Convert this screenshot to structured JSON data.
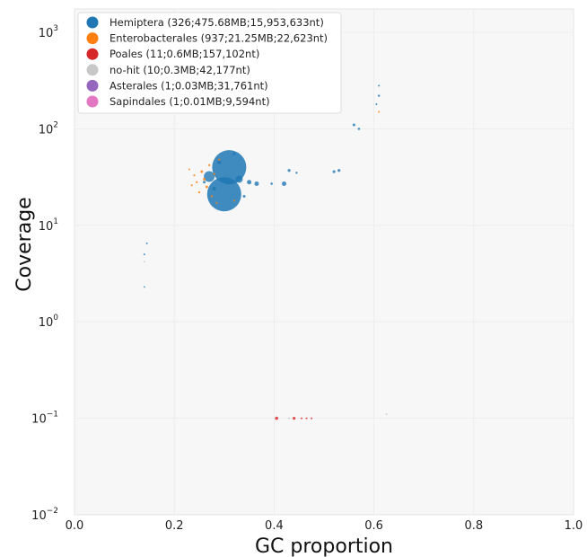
{
  "chart_data": {
    "type": "scatter",
    "xlabel": "GC proportion",
    "ylabel": "Coverage",
    "xlim": [
      0.0,
      1.0
    ],
    "ylim": [
      0.01,
      2000
    ],
    "yscale": "log",
    "x_ticks": [
      "0.0",
      "0.2",
      "0.4",
      "0.6",
      "0.8",
      "1.0"
    ],
    "y_ticks": [
      {
        "base": "10",
        "exp": "3"
      },
      {
        "base": "10",
        "exp": "2"
      },
      {
        "base": "10",
        "exp": "1"
      },
      {
        "base": "10",
        "exp": "0"
      },
      {
        "base": "10",
        "exp": "−1"
      },
      {
        "base": "10",
        "exp": "−2"
      }
    ],
    "grid": true,
    "legend_position": "top-left",
    "series": [
      {
        "name": "Hemiptera (326;475.68MB;15,953,633nt)",
        "color": "#1f77b4",
        "points": [
          {
            "x": 0.31,
            "y": 40,
            "r": 19
          },
          {
            "x": 0.3,
            "y": 21,
            "r": 19
          },
          {
            "x": 0.27,
            "y": 32,
            "r": 6
          },
          {
            "x": 0.33,
            "y": 30,
            "r": 4
          },
          {
            "x": 0.35,
            "y": 28,
            "r": 2.5
          },
          {
            "x": 0.365,
            "y": 27,
            "r": 2.5
          },
          {
            "x": 0.42,
            "y": 27,
            "r": 2.5
          },
          {
            "x": 0.43,
            "y": 37,
            "r": 1.6
          },
          {
            "x": 0.52,
            "y": 36,
            "r": 1.6
          },
          {
            "x": 0.53,
            "y": 37,
            "r": 1.6
          },
          {
            "x": 0.56,
            "y": 110,
            "r": 1.5
          },
          {
            "x": 0.57,
            "y": 100,
            "r": 1.3
          },
          {
            "x": 0.61,
            "y": 220,
            "r": 1.2
          },
          {
            "x": 0.61,
            "y": 280,
            "r": 1.0
          },
          {
            "x": 0.605,
            "y": 180,
            "r": 1.0
          },
          {
            "x": 0.28,
            "y": 24,
            "r": 2
          },
          {
            "x": 0.29,
            "y": 45,
            "r": 2
          },
          {
            "x": 0.32,
            "y": 55,
            "r": 1.5
          },
          {
            "x": 0.34,
            "y": 20,
            "r": 1.5
          },
          {
            "x": 0.26,
            "y": 28,
            "r": 1.5
          },
          {
            "x": 0.395,
            "y": 27,
            "r": 1.3
          },
          {
            "x": 0.445,
            "y": 35,
            "r": 1.2
          },
          {
            "x": 0.14,
            "y": 5,
            "r": 1.0
          },
          {
            "x": 0.145,
            "y": 6.5,
            "r": 1.0
          },
          {
            "x": 0.14,
            "y": 2.3,
            "r": 0.9
          }
        ]
      },
      {
        "name": "Enterobacterales (937;21.25MB;22,623nt)",
        "color": "#ff7f0e",
        "points": [
          {
            "x": 0.26,
            "y": 30,
            "r": 1.5
          },
          {
            "x": 0.255,
            "y": 36,
            "r": 1.5
          },
          {
            "x": 0.265,
            "y": 25,
            "r": 1.5
          },
          {
            "x": 0.25,
            "y": 22,
            "r": 1.2
          },
          {
            "x": 0.27,
            "y": 42,
            "r": 1.2
          },
          {
            "x": 0.245,
            "y": 28,
            "r": 1.2
          },
          {
            "x": 0.275,
            "y": 20,
            "r": 1.2
          },
          {
            "x": 0.28,
            "y": 34,
            "r": 1.2
          },
          {
            "x": 0.24,
            "y": 33,
            "r": 1.1
          },
          {
            "x": 0.235,
            "y": 26,
            "r": 1.1
          },
          {
            "x": 0.285,
            "y": 17,
            "r": 1.1
          },
          {
            "x": 0.29,
            "y": 48,
            "r": 1.1
          },
          {
            "x": 0.32,
            "y": 18,
            "r": 1.0
          },
          {
            "x": 0.23,
            "y": 38,
            "r": 1.0
          },
          {
            "x": 0.61,
            "y": 150,
            "r": 1.0
          }
        ]
      },
      {
        "name": "Poales (11;0.6MB;157,102nt)",
        "color": "#d62728",
        "points": [
          {
            "x": 0.405,
            "y": 0.1,
            "r": 1.8
          },
          {
            "x": 0.44,
            "y": 0.1,
            "r": 1.6
          },
          {
            "x": 0.455,
            "y": 0.1,
            "r": 1.0
          },
          {
            "x": 0.465,
            "y": 0.1,
            "r": 1.0
          },
          {
            "x": 0.475,
            "y": 0.1,
            "r": 1.0
          }
        ]
      },
      {
        "name": "no-hit (10;0.3MB;42,177nt)",
        "color": "#c8c8c8",
        "points": [
          {
            "x": 0.625,
            "y": 0.11,
            "r": 1.0
          },
          {
            "x": 0.43,
            "y": 0.1,
            "r": 1.0
          },
          {
            "x": 0.14,
            "y": 4.2,
            "r": 0.9
          }
        ]
      },
      {
        "name": "Asterales (1;0.03MB;31,761nt)",
        "color": "#9467bd",
        "points": []
      },
      {
        "name": "Sapindales (1;0.01MB;9,594nt)",
        "color": "#e377c2",
        "points": []
      }
    ]
  }
}
